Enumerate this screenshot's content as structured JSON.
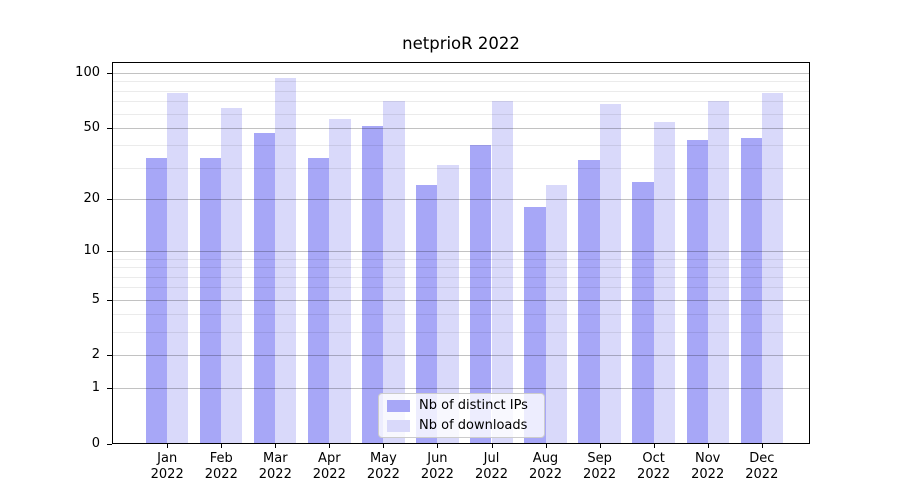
{
  "title": "netprioR 2022",
  "legend": {
    "items": [
      {
        "label": "Nb of distinct IPs",
        "color": "#a7a7f7"
      },
      {
        "label": "Nb of downloads",
        "color": "#d9d9fa"
      }
    ]
  },
  "y_axis": {
    "scale": "log10(1+value)",
    "major_ticks": [
      100,
      50,
      20,
      10,
      5,
      2,
      1,
      0
    ],
    "minor_gridlines": [
      90,
      80,
      70,
      60,
      40,
      30,
      9,
      8,
      7,
      6,
      4,
      3
    ]
  },
  "x_axis": {
    "months": [
      {
        "month": "Jan",
        "year": "2022"
      },
      {
        "month": "Feb",
        "year": "2022"
      },
      {
        "month": "Mar",
        "year": "2022"
      },
      {
        "month": "Apr",
        "year": "2022"
      },
      {
        "month": "May",
        "year": "2022"
      },
      {
        "month": "Jun",
        "year": "2022"
      },
      {
        "month": "Jul",
        "year": "2022"
      },
      {
        "month": "Aug",
        "year": "2022"
      },
      {
        "month": "Sep",
        "year": "2022"
      },
      {
        "month": "Oct",
        "year": "2022"
      },
      {
        "month": "Nov",
        "year": "2022"
      },
      {
        "month": "Dec",
        "year": "2022"
      }
    ]
  },
  "chart_data": {
    "type": "bar",
    "title": "netprioR 2022",
    "categories": [
      "Jan 2022",
      "Feb 2022",
      "Mar 2022",
      "Apr 2022",
      "May 2022",
      "Jun 2022",
      "Jul 2022",
      "Aug 2022",
      "Sep 2022",
      "Oct 2022",
      "Nov 2022",
      "Dec 2022"
    ],
    "series": [
      {
        "name": "Nb of distinct IPs",
        "color": "#a7a7f7",
        "values": [
          34,
          34,
          47,
          34,
          51,
          24,
          40,
          18,
          33,
          25,
          43,
          44
        ]
      },
      {
        "name": "Nb of downloads",
        "color": "#d9d9fa",
        "values": [
          78,
          64,
          94,
          56,
          70,
          31,
          70,
          24,
          68,
          54,
          70,
          78
        ]
      }
    ],
    "yscale": "log1p",
    "ylim": [
      0,
      115
    ],
    "y_major_ticks": [
      100,
      50,
      20,
      10,
      5,
      2,
      1,
      0
    ],
    "xlabel": "",
    "ylabel": "",
    "grid": true,
    "legend_position": "lower center"
  }
}
